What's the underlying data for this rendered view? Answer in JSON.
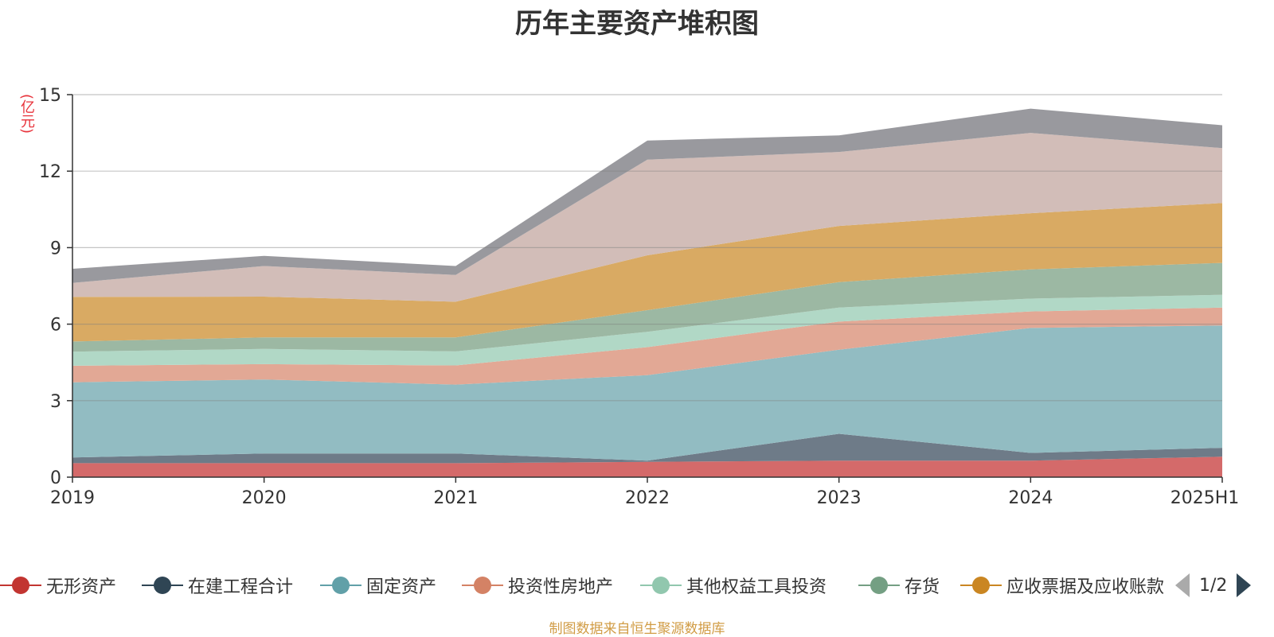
{
  "chart_data": {
    "type": "area",
    "title": "历年主要资产堆积图",
    "unit_label": "(亿元)",
    "source": "制图数据来自恒生聚源数据库",
    "categories": [
      "2019",
      "2020",
      "2021",
      "2022",
      "2023",
      "2024",
      "2025H1"
    ],
    "ylim": [
      0,
      15
    ],
    "yticks": [
      0,
      3,
      6,
      9,
      12,
      15
    ],
    "stacked": true,
    "grid": true,
    "legend_position": "bottom",
    "series": [
      {
        "name": "无形资产",
        "legend_color": "#c23531",
        "fill": "#d46a6a",
        "values": [
          0.55,
          0.55,
          0.55,
          0.6,
          0.65,
          0.65,
          0.8
        ]
      },
      {
        "name": "在建工程合计",
        "legend_color": "#2f4554",
        "fill": "#6e7b88",
        "values": [
          0.22,
          0.38,
          0.38,
          0.05,
          1.05,
          0.3,
          0.35
        ]
      },
      {
        "name": "固定资产",
        "legend_color": "#61a0a8",
        "fill": "#92bcc2",
        "values": [
          2.95,
          2.9,
          2.7,
          3.35,
          3.3,
          4.9,
          4.8
        ]
      },
      {
        "name": "投资性房地产",
        "legend_color": "#d48265",
        "fill": "#e2a895",
        "values": [
          0.65,
          0.6,
          0.75,
          1.1,
          1.1,
          0.65,
          0.7
        ]
      },
      {
        "name": "其他权益工具投资",
        "legend_color": "#91c7ae",
        "fill": "#b1d8c6",
        "values": [
          0.55,
          0.6,
          0.55,
          0.6,
          0.55,
          0.5,
          0.5
        ]
      },
      {
        "name": "存货",
        "legend_color": "#749f83",
        "fill": "#9cb8a3",
        "values": [
          0.4,
          0.45,
          0.55,
          0.85,
          1.0,
          1.15,
          1.25
        ]
      },
      {
        "name": "应收票据及应收账款",
        "legend_color": "#ca8622",
        "fill": "#d9aa63",
        "values": [
          1.75,
          1.6,
          1.4,
          2.15,
          2.2,
          2.2,
          2.35
        ]
      },
      {
        "fill": "#d2bdb8",
        "values": [
          0.55,
          1.2,
          1.05,
          3.75,
          2.9,
          3.15,
          2.15
        ]
      },
      {
        "fill": "#99999e",
        "values": [
          0.55,
          0.4,
          0.35,
          0.75,
          0.65,
          0.95,
          0.9
        ]
      }
    ]
  },
  "legend": {
    "page_text": "1/2"
  }
}
